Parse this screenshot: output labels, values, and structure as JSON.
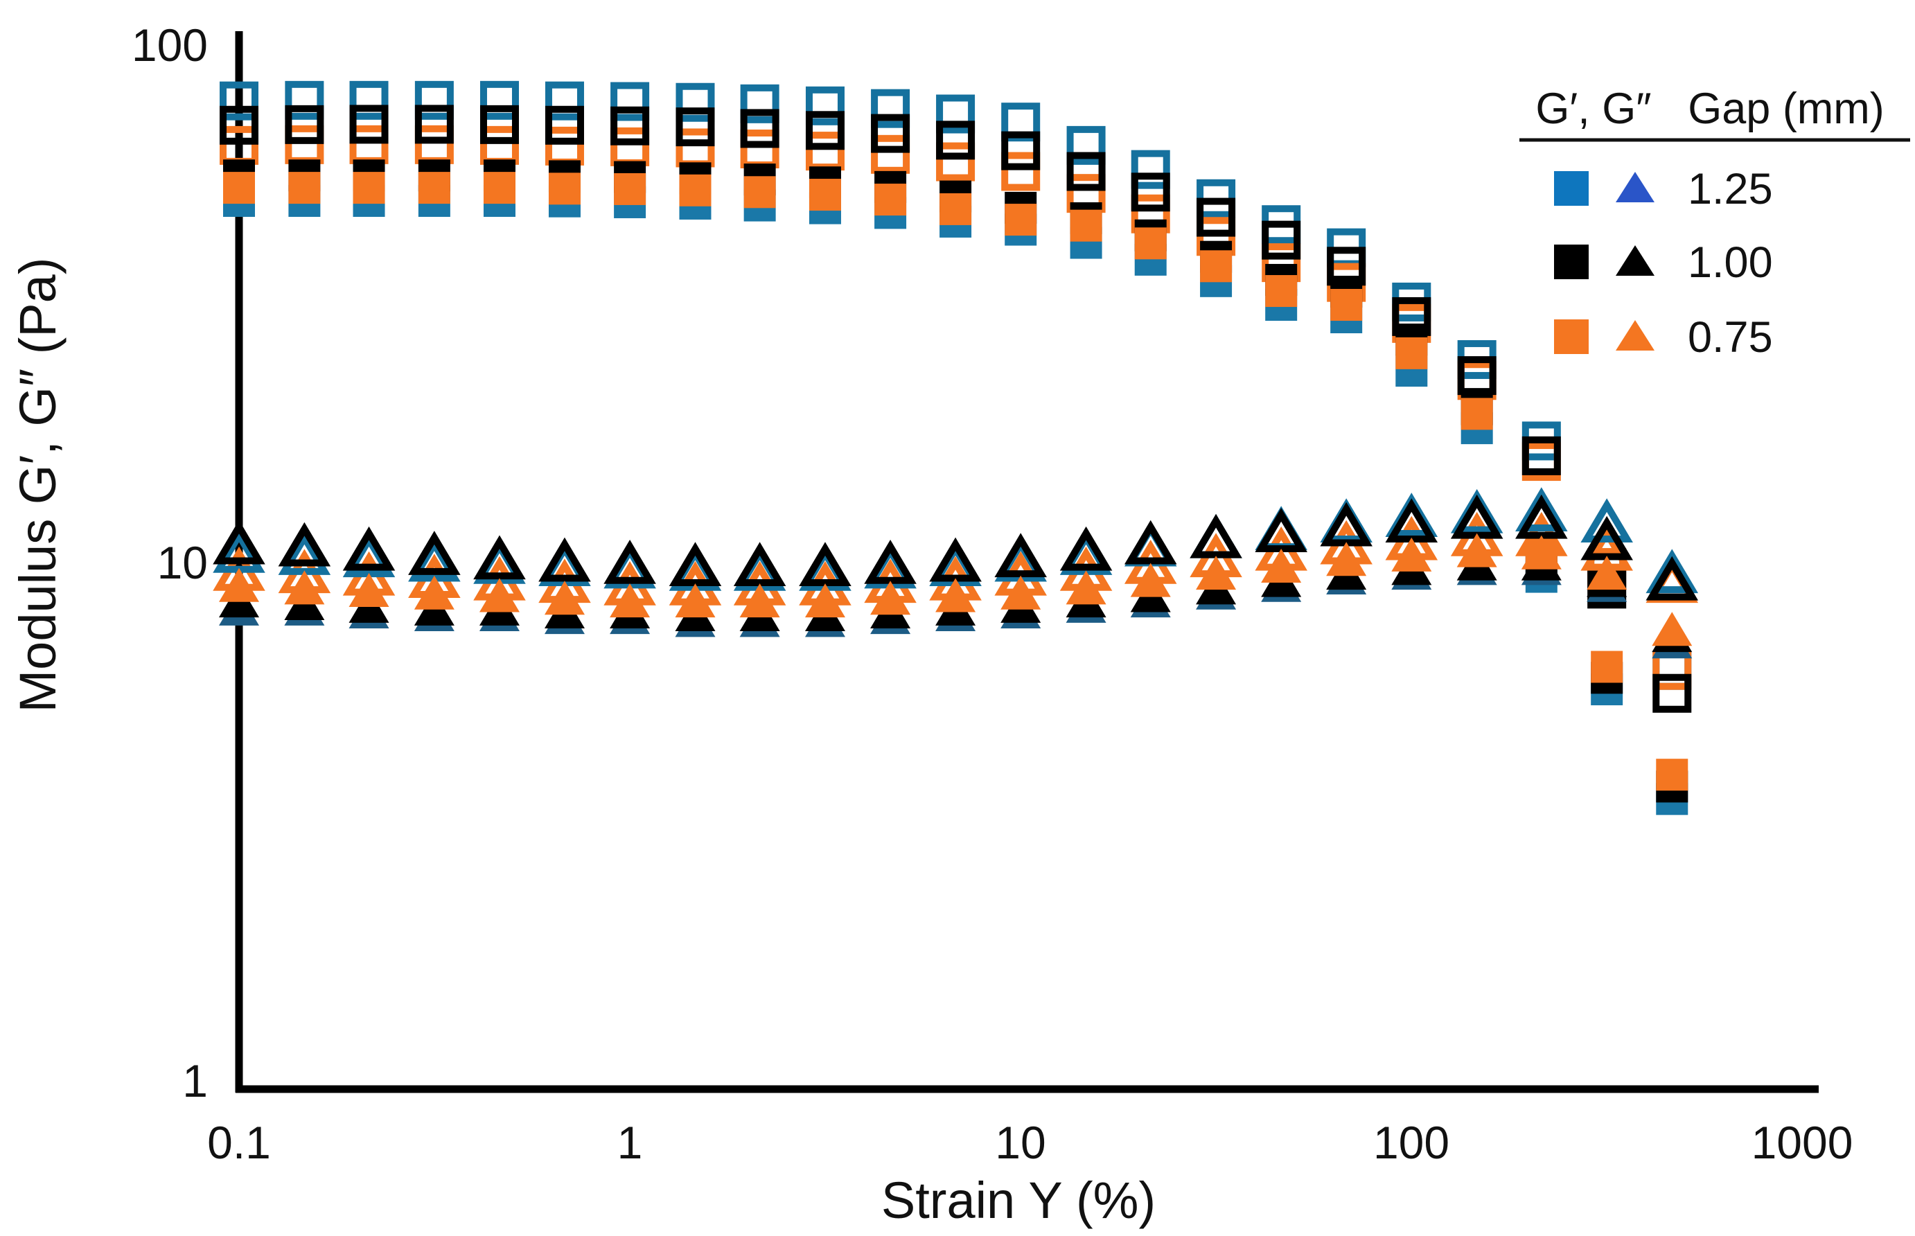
{
  "figure": {
    "background_color": "#ffffff",
    "y_axis": {
      "title": "Modulus G′, G″ (Pa)",
      "ticks": [
        "100",
        "10",
        "1"
      ]
    },
    "x_axis": {
      "title": "Strain Y (%)",
      "ticks": [
        "0.1",
        "1",
        "10",
        "100",
        "1000"
      ]
    }
  },
  "legend": {
    "header_symbols": "G′, G″",
    "header_gap": "Gap (mm)",
    "items": [
      {
        "label": "1.25",
        "square_color": "#0e76be",
        "triangle_color": "#2a55c8"
      },
      {
        "label": "1.00",
        "square_color": "#000000",
        "triangle_color": "#000000"
      },
      {
        "label": "0.75",
        "square_color": "#f47621",
        "triangle_color": "#f47621"
      }
    ]
  },
  "chart_data": {
    "type": "scatter",
    "title": "",
    "xlabel": "Strain Y (%)",
    "ylabel": "Modulus G′, G″ (Pa)",
    "x_scale": "log",
    "y_scale": "log",
    "xlim": [
      0.1,
      1000
    ],
    "ylim": [
      1,
      100
    ],
    "x_ticks": [
      0.1,
      1,
      10,
      100,
      1000
    ],
    "y_ticks": [
      1,
      10,
      100
    ],
    "grid": false,
    "legend_position": "top-right",
    "strain_percent": [
      0.1,
      0.147,
      0.215,
      0.316,
      0.464,
      0.681,
      1,
      1.47,
      2.15,
      3.16,
      4.64,
      6.81,
      10,
      14.7,
      21.5,
      31.6,
      46.4,
      68.1,
      100,
      147,
      215,
      316,
      464
    ],
    "series": [
      {
        "name": "G' open square, gap 1.25 mm",
        "quantity": "G'",
        "gap_mm": 1.25,
        "marker": "square",
        "fill": "open",
        "color": "#15719e",
        "values": [
          78,
          78.2,
          78.2,
          78.2,
          78.2,
          78,
          77.8,
          77.5,
          77,
          76.3,
          75.4,
          73.6,
          71,
          64,
          57.5,
          50.5,
          45,
          40.6,
          31.9,
          24.7,
          17.2,
          9.7,
          6.2
        ]
      },
      {
        "name": "G' open square, gap 0.75 mm",
        "quantity": "G'",
        "gap_mm": 0.75,
        "marker": "square",
        "fill": "open",
        "color": "#f47621",
        "values": [
          64,
          64.2,
          64.2,
          64.2,
          64,
          63.8,
          63.6,
          63.3,
          63,
          62.4,
          61.5,
          59.5,
          57,
          51.7,
          47.2,
          42.7,
          38,
          34.8,
          29,
          22.5,
          15.7,
          9.8,
          6.2
        ]
      },
      {
        "name": "G' open square, gap 1.00 mm",
        "quantity": "G'",
        "gap_mm": 1.0,
        "marker": "square",
        "fill": "open",
        "color": "#000000",
        "values": [
          70,
          70.2,
          70.3,
          70.3,
          70.2,
          70,
          69.8,
          69.5,
          69,
          68.4,
          67.5,
          65.5,
          62.5,
          57,
          52,
          46.5,
          42,
          37.4,
          29.9,
          23,
          16.1,
          8.9,
          5.6
        ]
      },
      {
        "name": "G' filled square, gap 1.25 mm",
        "quantity": "G'",
        "gap_mm": 1.25,
        "marker": "square",
        "fill": "filled",
        "color": "#1a78a8",
        "values": [
          50,
          50,
          50,
          50,
          50,
          49.9,
          49.7,
          49.4,
          49,
          48.4,
          47.4,
          45.6,
          44,
          41.5,
          38.5,
          35,
          31.5,
          29.8,
          23.5,
          18.2,
          9.4,
          5.7,
          3.5
        ]
      },
      {
        "name": "G' filled square, gap 1.00 mm",
        "quantity": "G'",
        "gap_mm": 1.0,
        "marker": "square",
        "fill": "filled",
        "color": "#000000",
        "values": [
          56,
          56,
          56,
          56,
          56,
          55.8,
          55.6,
          55.3,
          55,
          54.3,
          53.2,
          51,
          48.5,
          46.3,
          42.9,
          39,
          35.2,
          33.4,
          27,
          19.8,
          9.9,
          6,
          3.7
        ]
      },
      {
        "name": "G' filled square, gap 0.75 mm",
        "quantity": "G'",
        "gap_mm": 0.75,
        "marker": "square",
        "fill": "filled",
        "color": "#f47621",
        "values": [
          53,
          53,
          53,
          53,
          53,
          52.8,
          52.7,
          52.4,
          52,
          51.4,
          50.3,
          48.2,
          46,
          44.8,
          41.4,
          37.4,
          33.5,
          31.5,
          25.4,
          19.4,
          10.5,
          6.3,
          3.9
        ]
      },
      {
        "name": "G'' open triangle, gap 0.75 mm",
        "quantity": "G''",
        "gap_mm": 0.75,
        "marker": "triangle",
        "fill": "open",
        "color": "#f47621",
        "values": [
          9.6,
          9.5,
          9.4,
          9.3,
          9.2,
          9.1,
          9,
          9,
          9,
          9,
          9.1,
          9.2,
          9.4,
          9.6,
          9.9,
          10.2,
          10.5,
          10.8,
          11,
          11.2,
          11.2,
          10.5,
          9.1
        ]
      },
      {
        "name": "G'' open triangle, gap 1.25 mm",
        "quantity": "G''",
        "gap_mm": 1.25,
        "marker": "triangle",
        "fill": "open",
        "color": "#15719e",
        "values": [
          10.4,
          10.3,
          10.2,
          10,
          9.9,
          9.8,
          9.7,
          9.6,
          9.6,
          9.6,
          9.7,
          9.8,
          10,
          10.3,
          10.7,
          11.1,
          11.5,
          11.9,
          12.2,
          12.4,
          12.5,
          11.9,
          9.5
        ]
      },
      {
        "name": "G'' open triangle, gap 1.00 mm",
        "quantity": "G''",
        "gap_mm": 1.0,
        "marker": "triangle",
        "fill": "open",
        "color": "#000000",
        "values": [
          10.8,
          10.7,
          10.5,
          10.3,
          10.1,
          10,
          9.9,
          9.8,
          9.8,
          9.8,
          9.9,
          10,
          10.2,
          10.5,
          10.8,
          11.1,
          11.4,
          11.7,
          11.9,
          12.1,
          12.1,
          11,
          9.2
        ]
      },
      {
        "name": "G'' filled triangle, gap 1.25 mm",
        "quantity": "G''",
        "gap_mm": 1.25,
        "marker": "triangle",
        "fill": "filled",
        "color": "#1d5c85",
        "values": [
          8.1,
          8.1,
          8,
          7.9,
          7.9,
          7.8,
          7.8,
          7.7,
          7.7,
          7.7,
          7.8,
          7.9,
          8,
          8.2,
          8.4,
          8.7,
          9,
          9.3,
          9.5,
          9.7,
          9.7,
          9,
          7
        ]
      },
      {
        "name": "G'' filled triangle, gap 1.00 mm",
        "quantity": "G''",
        "gap_mm": 1.0,
        "marker": "triangle",
        "fill": "filled",
        "color": "#000000",
        "values": [
          8.4,
          8.3,
          8.2,
          8.1,
          8.1,
          8,
          8,
          7.9,
          7.9,
          7.9,
          8,
          8.1,
          8.2,
          8.4,
          8.6,
          8.9,
          9.2,
          9.5,
          9.7,
          9.9,
          9.9,
          9.2,
          7.2
        ]
      },
      {
        "name": "G'' filled triangle, gap 0.75 mm",
        "quantity": "G''",
        "gap_mm": 0.75,
        "marker": "triangle",
        "fill": "filled",
        "color": "#f47621",
        "values": [
          9,
          8.9,
          8.8,
          8.7,
          8.6,
          8.5,
          8.4,
          8.4,
          8.4,
          8.4,
          8.5,
          8.6,
          8.7,
          8.9,
          9.2,
          9.5,
          9.8,
          10.1,
          10.3,
          10.5,
          10.4,
          9.5,
          7.4
        ]
      }
    ]
  }
}
